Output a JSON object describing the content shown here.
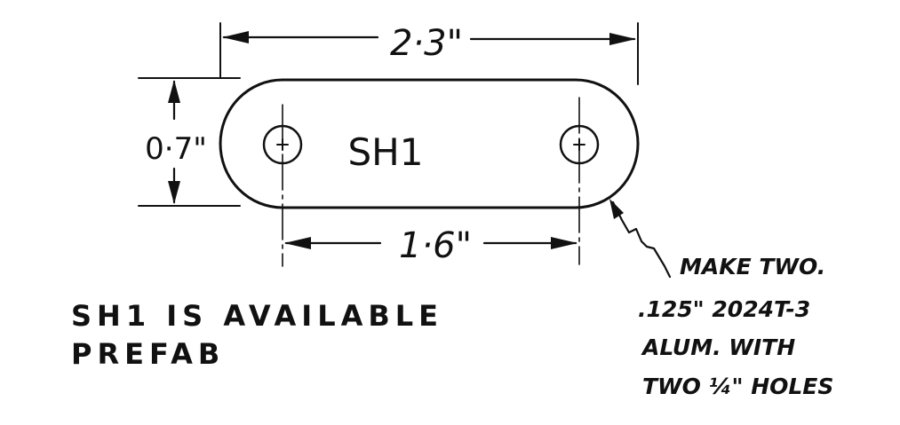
{
  "part": {
    "label": "SH1"
  },
  "dimensions": {
    "overall_length": "2·3\"",
    "height": "0·7\"",
    "hole_spacing": "1·6\""
  },
  "notes": {
    "availability_line1": "SH1 IS AVAILABLE",
    "availability_line2": "PREFAB",
    "make_line1": "MAKE TWO.",
    "make_line2": ".125\" 2024T-3",
    "make_line3": "ALUM. WITH",
    "make_line4": "TWO ¼\" HOLES"
  },
  "colors": {
    "ink": "#111111",
    "paper": "#ffffff"
  }
}
